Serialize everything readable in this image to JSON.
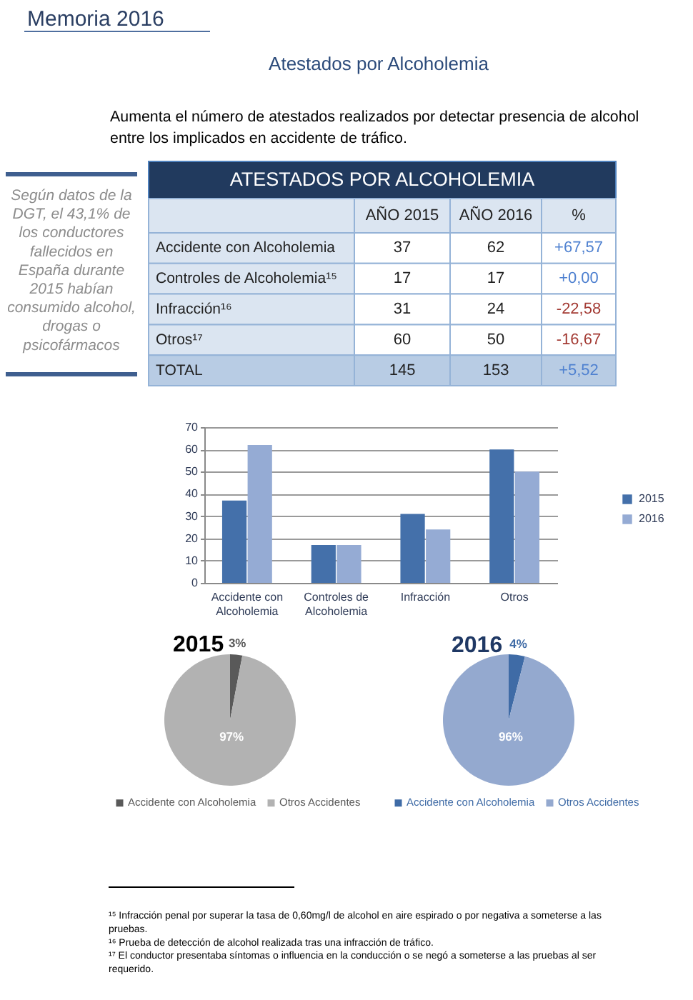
{
  "chart_data": [
    {
      "type": "other",
      "title": "Atestados por Alcoholemia",
      "annotations": [
        "Memoria 2016",
        "Aumenta el número de atestados realizados por detectar presencia de alcohol entre los implicados en accidente de tráfico."
      ]
    },
    {
      "type": "other",
      "annotations": [
        "Según datos de la DGT, el 43,1% de los conductores fallecidos en España durante 2015 habían consumido alcohol, drogas o psicofármacos"
      ]
    },
    {
      "type": "other",
      "title": "ATESTADOS POR ALCOHOLEMIA",
      "categories": [
        "Accidente con Alcoholemia",
        "Controles de Alcoholemia¹⁵",
        "Infracción¹⁶",
        "Otros¹⁷",
        "TOTAL"
      ],
      "series": [
        {
          "name": "AÑO 2015",
          "values": [
            37,
            17,
            31,
            60,
            145
          ],
          "colors": [
            "#ffffff",
            "#ffffff",
            "#ffffff",
            "#ffffff",
            "#b8cce4"
          ]
        },
        {
          "name": "AÑO 2016",
          "values": [
            62,
            17,
            24,
            50,
            153
          ],
          "colors": [
            "#ffffff",
            "#ffffff",
            "#ffffff",
            "#ffffff",
            "#b8cce4"
          ]
        },
        {
          "name": "%",
          "values": [
            67.57,
            0,
            -22.58,
            -16.67,
            5.52
          ],
          "value_labels": [
            "+67,57",
            "+0,00",
            "-22,58",
            "-16,67",
            "+5,52"
          ],
          "colors": [
            "#ffffff",
            "#ffffff",
            "#ffffff",
            "#ffffff",
            "#b8cce4"
          ]
        }
      ],
      "data_labels": true
    },
    {
      "type": "bar",
      "categories": [
        "Accidente con Alcoholemia",
        "Controles de Alcoholemia",
        "Infracción",
        "Otros"
      ],
      "series": [
        {
          "name": "2015",
          "color": "#4470aa",
          "values": [
            37,
            17,
            31,
            60
          ]
        },
        {
          "name": "2016",
          "color": "#95abd4",
          "values": [
            62,
            17,
            24,
            50
          ]
        }
      ],
      "ylim": [
        0,
        70
      ],
      "yticks": [
        0,
        10,
        20,
        30,
        40,
        50,
        60,
        70
      ],
      "grid": "y",
      "legend": "right"
    },
    {
      "type": "pie",
      "title": "2015",
      "categories": [
        "Accidente con Alcoholemia",
        "Otros Accidentes"
      ],
      "values": [
        3,
        97
      ],
      "colors": [
        "#595959",
        "#b2b2b2"
      ],
      "value_labels": [
        "3%",
        "97%"
      ],
      "legend": "bottom"
    },
    {
      "type": "pie",
      "title": "2016",
      "categories": [
        "Accidente con Alcoholemia",
        "Otros Accidentes"
      ],
      "values": [
        4,
        96
      ],
      "colors": [
        "#3f6ba6",
        "#94a9cf"
      ],
      "value_labels": [
        "4%",
        "96%"
      ],
      "legend": "bottom"
    },
    {
      "type": "other",
      "annotations": [
        "¹⁵ Infracción penal por superar la tasa de 0,60mg/l de alcohol en aire espirado o por negativa a someterse a las pruebas.",
        "¹⁶ Prueba de detección de alcohol realizada tras una infracción de tráfico.",
        "¹⁷ El conductor presentaba síntomas o influencia en la conducción o se negó a someterse a las pruebas al ser requerido."
      ]
    }
  ]
}
